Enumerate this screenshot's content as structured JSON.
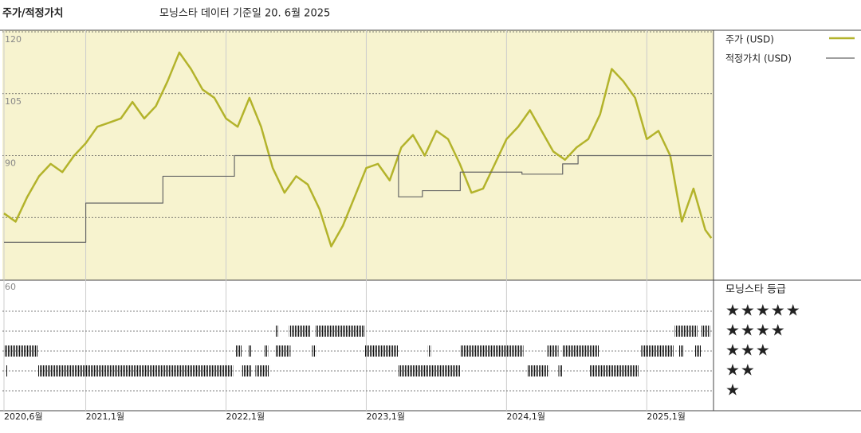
{
  "header": {
    "title": "주가/적정가치",
    "subtitle": "모닝스타 데이터 기준일 20. 6월 2025"
  },
  "chart_data": {
    "type": "line",
    "xlim": [
      2020.417,
      2025.47
    ],
    "xticks": [
      {
        "value": 2020.417,
        "label": "2020,6월"
      },
      {
        "value": 2021,
        "label": "2021,1월"
      },
      {
        "value": 2022,
        "label": "2022,1월"
      },
      {
        "value": 2023,
        "label": "2023,1월"
      },
      {
        "value": 2024,
        "label": "2024,1월"
      },
      {
        "value": 2025,
        "label": "2025,1월"
      }
    ],
    "ylim": [
      60,
      120
    ],
    "yticks": [
      60,
      90,
      105,
      120
    ],
    "ygrid": [
      75,
      90,
      105,
      120
    ],
    "series": [
      {
        "name": "주가 (USD)",
        "color": "#b3b32b",
        "step": false,
        "x": [
          2020.417,
          2020.5,
          2020.583,
          2020.667,
          2020.75,
          2020.833,
          2020.917,
          2021,
          2021.083,
          2021.167,
          2021.25,
          2021.333,
          2021.417,
          2021.5,
          2021.583,
          2021.667,
          2021.75,
          2021.833,
          2021.917,
          2022,
          2022.083,
          2022.167,
          2022.25,
          2022.333,
          2022.417,
          2022.5,
          2022.583,
          2022.667,
          2022.75,
          2022.833,
          2022.917,
          2023,
          2023.083,
          2023.167,
          2023.25,
          2023.333,
          2023.417,
          2023.5,
          2023.583,
          2023.667,
          2023.75,
          2023.833,
          2023.917,
          2024,
          2024.083,
          2024.167,
          2024.25,
          2024.333,
          2024.417,
          2024.5,
          2024.583,
          2024.667,
          2024.75,
          2024.833,
          2024.917,
          2025,
          2025.083,
          2025.167,
          2025.25,
          2025.333,
          2025.417,
          2025.46
        ],
        "values": [
          76,
          74,
          80,
          85,
          88,
          86,
          90,
          93,
          97,
          98,
          99,
          103,
          99,
          102,
          108,
          115,
          111,
          106,
          104,
          99,
          97,
          104,
          97,
          87,
          81,
          85,
          83,
          77,
          68,
          73,
          80,
          87,
          88,
          84,
          92,
          95,
          90,
          96,
          94,
          88,
          81,
          82,
          88,
          94,
          97,
          101,
          96,
          91,
          89,
          92,
          94,
          100,
          111,
          108,
          104,
          94,
          96,
          90,
          74,
          82,
          72,
          70
        ]
      },
      {
        "name": "적정가치 (USD)",
        "color": "#666666",
        "step": true,
        "x": [
          2020.417,
          2021.0,
          2021.55,
          2022.06,
          2023.23,
          2023.4,
          2023.67,
          2024.11,
          2024.4,
          2024.51,
          2025.46
        ],
        "values": [
          69,
          78.5,
          85,
          90,
          80,
          81.5,
          86,
          85.5,
          88,
          90,
          90
        ]
      }
    ],
    "ratings": {
      "title": "모닝스타 등급",
      "levels": [
        5,
        4,
        3,
        2,
        1
      ],
      "legend": [
        "★★★★★",
        "★★★★",
        "★★★",
        "★★",
        "★"
      ],
      "periods": [
        {
          "rating": 4,
          "start": 2022.35,
          "end": 2022.37
        },
        {
          "rating": 4,
          "start": 2022.45,
          "end": 2022.6
        },
        {
          "rating": 4,
          "start": 2022.64,
          "end": 2022.99
        },
        {
          "rating": 4,
          "start": 2025.2,
          "end": 2025.36
        },
        {
          "rating": 4,
          "start": 2025.39,
          "end": 2025.45
        },
        {
          "rating": 3,
          "start": 2020.42,
          "end": 2020.66
        },
        {
          "rating": 3,
          "start": 2022.07,
          "end": 2022.11
        },
        {
          "rating": 3,
          "start": 2022.16,
          "end": 2022.18
        },
        {
          "rating": 3,
          "start": 2022.27,
          "end": 2022.3
        },
        {
          "rating": 3,
          "start": 2022.35,
          "end": 2022.46
        },
        {
          "rating": 3,
          "start": 2022.61,
          "end": 2022.64
        },
        {
          "rating": 3,
          "start": 2022.99,
          "end": 2023.23
        },
        {
          "rating": 3,
          "start": 2023.44,
          "end": 2023.46
        },
        {
          "rating": 3,
          "start": 2023.67,
          "end": 2024.12
        },
        {
          "rating": 3,
          "start": 2024.29,
          "end": 2024.37
        },
        {
          "rating": 3,
          "start": 2024.4,
          "end": 2024.66
        },
        {
          "rating": 3,
          "start": 2024.96,
          "end": 2025.19
        },
        {
          "rating": 3,
          "start": 2025.23,
          "end": 2025.26
        },
        {
          "rating": 3,
          "start": 2025.34,
          "end": 2025.39
        },
        {
          "rating": 2,
          "start": 2020.43,
          "end": 2020.44
        },
        {
          "rating": 2,
          "start": 2020.66,
          "end": 2022.05
        },
        {
          "rating": 2,
          "start": 2022.11,
          "end": 2022.18
        },
        {
          "rating": 2,
          "start": 2022.21,
          "end": 2022.31
        },
        {
          "rating": 2,
          "start": 2023.23,
          "end": 2023.67
        },
        {
          "rating": 2,
          "start": 2024.15,
          "end": 2024.3
        },
        {
          "rating": 2,
          "start": 2024.37,
          "end": 2024.4
        },
        {
          "rating": 2,
          "start": 2024.59,
          "end": 2024.94
        }
      ]
    }
  }
}
